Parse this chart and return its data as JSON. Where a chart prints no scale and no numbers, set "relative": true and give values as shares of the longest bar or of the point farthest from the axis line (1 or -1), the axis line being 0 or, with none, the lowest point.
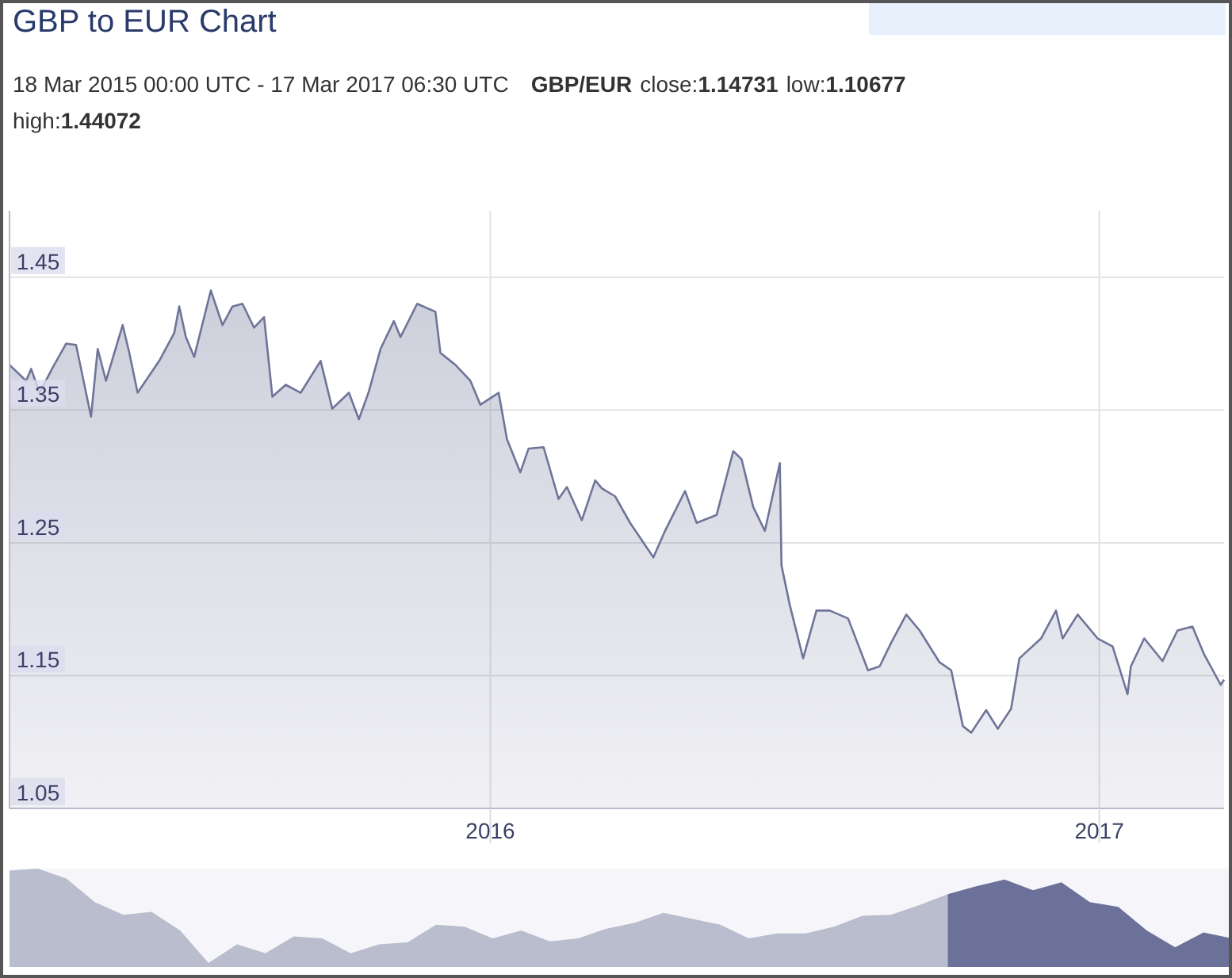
{
  "chart_data": [
    {
      "type": "area",
      "title": "GBP to EUR Chart",
      "subtitle": "18 Mar 2015 00:00 UTC - 17 Mar 2017 06:30 UTC",
      "annotations": [
        "GBP/EUR",
        "close:1.14731",
        "low:1.10677",
        "high:1.44072"
      ],
      "x": [
        "2015-03-18",
        "2015-03-28",
        "2015-03-31",
        "2015-04-05",
        "2015-04-13",
        "2015-04-21",
        "2015-04-27",
        "2015-05-06",
        "2015-05-10",
        "2015-05-15",
        "2015-05-25",
        "2015-05-29",
        "2015-06-03",
        "2015-06-16",
        "2015-06-25",
        "2015-06-28",
        "2015-07-02",
        "2015-07-07",
        "2015-07-17",
        "2015-07-24",
        "2015-07-30",
        "2015-08-05",
        "2015-08-12",
        "2015-08-18",
        "2015-08-23",
        "2015-08-31",
        "2015-09-09",
        "2015-09-21",
        "2015-09-28",
        "2015-10-08",
        "2015-10-14",
        "2015-10-20",
        "2015-10-27",
        "2015-11-04",
        "2015-11-08",
        "2015-11-18",
        "2015-11-29",
        "2015-12-02",
        "2015-12-11",
        "2015-12-20",
        "2015-12-26",
        "2016-01-06",
        "2016-01-11",
        "2016-01-19",
        "2016-01-24",
        "2016-02-02",
        "2016-02-11",
        "2016-02-16",
        "2016-02-25",
        "2016-03-04",
        "2016-03-08",
        "2016-03-16",
        "2016-03-25",
        "2016-04-08",
        "2016-04-15",
        "2016-04-27",
        "2016-05-04",
        "2016-05-16",
        "2016-05-26",
        "2016-05-31",
        "2016-06-07",
        "2016-06-14",
        "2016-06-23",
        "2016-06-24",
        "2016-06-29",
        "2016-07-07",
        "2016-07-15",
        "2016-07-23",
        "2016-08-03",
        "2016-08-15",
        "2016-08-22",
        "2016-08-29",
        "2016-09-07",
        "2016-09-15",
        "2016-09-27",
        "2016-10-04",
        "2016-10-11",
        "2016-10-16",
        "2016-10-25",
        "2016-11-01",
        "2016-11-09",
        "2016-11-14",
        "2016-11-27",
        "2016-12-06",
        "2016-12-10",
        "2016-12-19",
        "2016-12-31",
        "2017-01-09",
        "2017-01-18",
        "2017-01-20",
        "2017-01-28",
        "2017-02-08",
        "2017-02-17",
        "2017-02-26",
        "2017-03-05",
        "2017-03-15",
        "2017-03-17"
      ],
      "series": [
        {
          "color": "#6f7599",
          "values": [
            1.384,
            1.372,
            1.381,
            1.363,
            1.382,
            1.4,
            1.399,
            1.345,
            1.396,
            1.372,
            1.414,
            1.393,
            1.363,
            1.387,
            1.408,
            1.428,
            1.405,
            1.39,
            1.44,
            1.414,
            1.428,
            1.43,
            1.412,
            1.42,
            1.36,
            1.369,
            1.363,
            1.387,
            1.351,
            1.363,
            1.343,
            1.364,
            1.396,
            1.417,
            1.405,
            1.43,
            1.424,
            1.393,
            1.384,
            1.372,
            1.354,
            1.363,
            1.328,
            1.303,
            1.321,
            1.322,
            1.283,
            1.292,
            1.267,
            1.297,
            1.291,
            1.285,
            1.265,
            1.239,
            1.259,
            1.289,
            1.265,
            1.271,
            1.319,
            1.313,
            1.277,
            1.259,
            1.31,
            1.233,
            1.203,
            1.163,
            1.199,
            1.199,
            1.193,
            1.154,
            1.157,
            1.175,
            1.196,
            1.184,
            1.16,
            1.154,
            1.112,
            1.107,
            1.124,
            1.11,
            1.125,
            1.163,
            1.178,
            1.199,
            1.178,
            1.196,
            1.178,
            1.172,
            1.136,
            1.157,
            1.178,
            1.161,
            1.184,
            1.187,
            1.166,
            1.143,
            1.147
          ]
        }
      ],
      "xlim": [
        "2015-03-18",
        "2017-03-17"
      ],
      "xticks": [
        "2016",
        "2017"
      ],
      "ylim": [
        1.05,
        1.5
      ],
      "yticks": [
        1.05,
        1.15,
        1.25,
        1.35,
        1.45
      ],
      "grid": true
    },
    {
      "type": "area",
      "relative": true,
      "categories": [
        null,
        null,
        null,
        null,
        null,
        null,
        null,
        null,
        null,
        null,
        null,
        null,
        null,
        null,
        null,
        null,
        null,
        null,
        null,
        null,
        null,
        null,
        null,
        null,
        null,
        null,
        null,
        null,
        null,
        null,
        null,
        null,
        null,
        null,
        null,
        null,
        null,
        null,
        null,
        null,
        null,
        null,
        null,
        null
      ],
      "series": [
        {
          "color": "#b9bdcd",
          "values": [
            0.98,
            1.0,
            0.9,
            0.66,
            0.53,
            0.56,
            0.37,
            0.04,
            0.23,
            0.14,
            0.31,
            0.29,
            0.14,
            0.23,
            0.25,
            0.43,
            0.41,
            0.29,
            0.37,
            0.26,
            0.29,
            0.39,
            0.45,
            0.55,
            0.49,
            0.43,
            0.29,
            0.34,
            0.34,
            0.41,
            0.52,
            0.53,
            0.63,
            0.74,
            null,
            null,
            null,
            null,
            null,
            null,
            null,
            null,
            null,
            null
          ]
        },
        {
          "color": "#6b7198",
          "values": [
            null,
            null,
            null,
            null,
            null,
            null,
            null,
            null,
            null,
            null,
            null,
            null,
            null,
            null,
            null,
            null,
            null,
            null,
            null,
            null,
            null,
            null,
            null,
            null,
            null,
            null,
            null,
            null,
            null,
            null,
            null,
            null,
            null,
            0.74,
            0.82,
            0.89,
            0.78,
            0.86,
            0.66,
            0.61,
            0.37,
            0.2,
            0.35,
            0.29
          ]
        }
      ]
    }
  ]
}
